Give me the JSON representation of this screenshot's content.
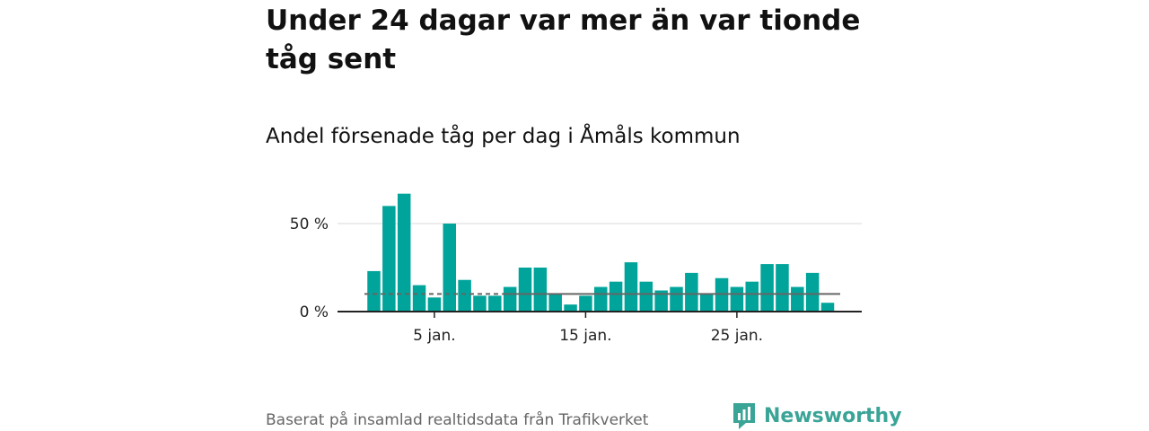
{
  "title": "Under 24 dagar var mer än var tionde tåg sent",
  "subtitle": "Andel försenade tåg per dag i Åmåls kommun",
  "source": "Baserat på insamlad realtidsdata från Trafikverket",
  "brand": {
    "name": "Newsworthy",
    "logo_icon": "newsworthy-chart-logo-icon"
  },
  "colors": {
    "bar": "#00a49a",
    "reference_line": "#666666",
    "grid": "#d9d9d9",
    "axis": "#222222",
    "brand": "#3aa497"
  },
  "chart_data": {
    "type": "bar",
    "title": "Andel försenade tåg per dag i Åmåls kommun",
    "xlabel": "",
    "ylabel": "",
    "x": [
      1,
      2,
      3,
      4,
      5,
      6,
      7,
      8,
      9,
      10,
      11,
      12,
      13,
      14,
      15,
      16,
      17,
      18,
      19,
      20,
      21,
      22,
      23,
      24,
      25,
      26,
      27,
      28,
      29,
      30,
      31
    ],
    "values": [
      23,
      60,
      67,
      15,
      8,
      50,
      18,
      9,
      9,
      14,
      25,
      25,
      10,
      4,
      9,
      14,
      17,
      28,
      17,
      12,
      14,
      22,
      10,
      19,
      14,
      17,
      27,
      27,
      14,
      22,
      5
    ],
    "unit": "%",
    "ylim": [
      0,
      70
    ],
    "yticks": [
      0,
      50
    ],
    "ytick_labels": [
      "0 %",
      "50 %"
    ],
    "xticks": [
      5,
      15,
      25
    ],
    "xtick_labels": [
      "5 jan.",
      "15 jan.",
      "25 jan."
    ],
    "reference_line": 10,
    "grid": true
  }
}
